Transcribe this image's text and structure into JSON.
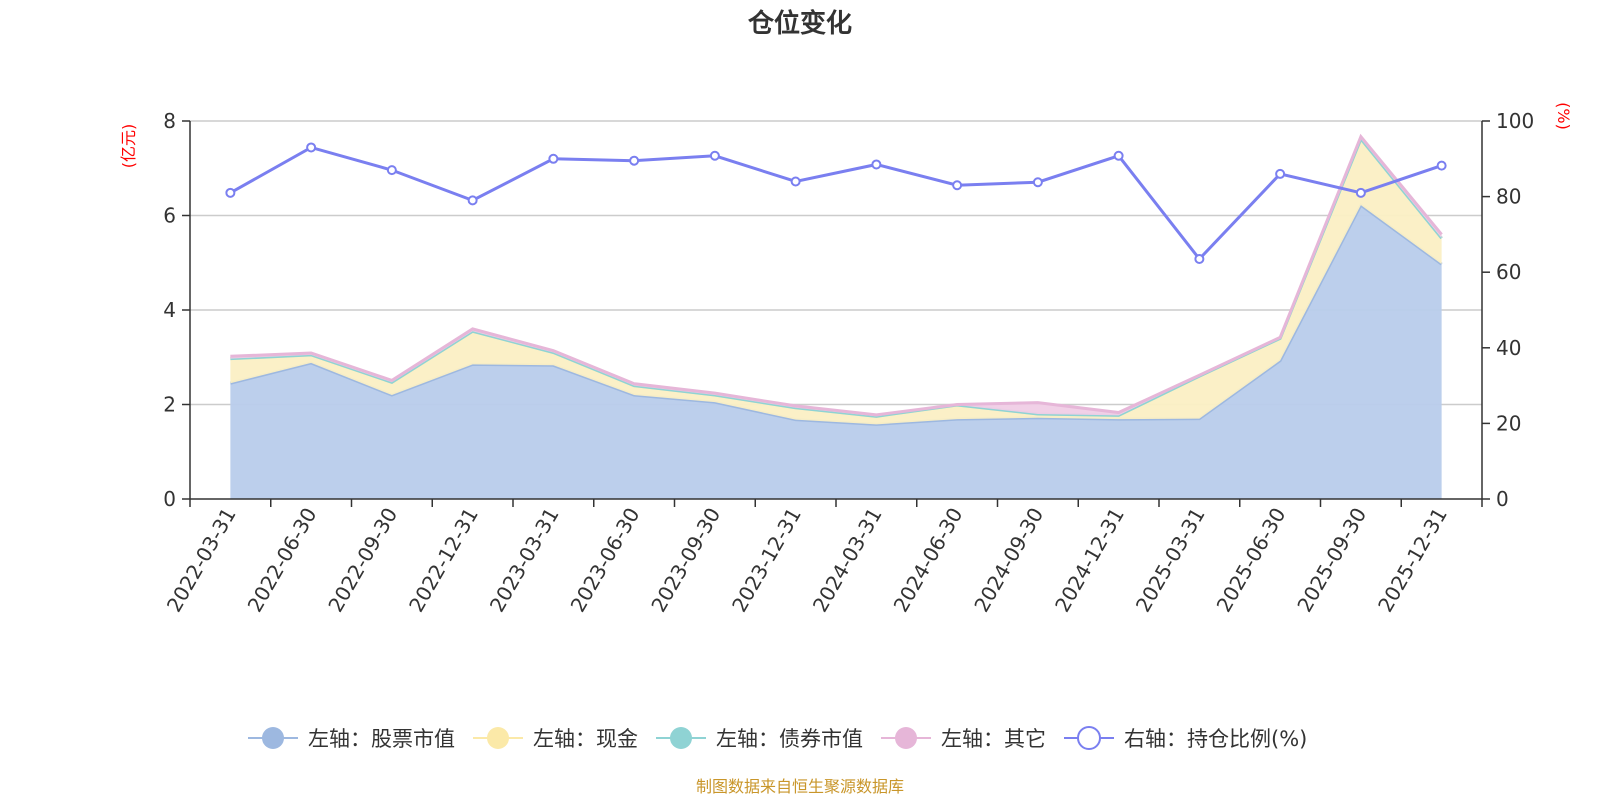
{
  "chart_data": {
    "type": "area",
    "title": "仓位变化",
    "y_left_unit": "(亿元)",
    "y_right_unit": "(%)",
    "ylim_left": [
      0,
      8
    ],
    "ylim_right": [
      0,
      100
    ],
    "yticks_left": [
      "0",
      "2",
      "4",
      "6",
      "8"
    ],
    "yticks_right": [
      "0",
      "20",
      "40",
      "60",
      "80",
      "100"
    ],
    "categories": [
      "2022-03-31",
      "2022-06-30",
      "2022-09-30",
      "2022-12-31",
      "2023-03-31",
      "2023-06-30",
      "2023-09-30",
      "2023-12-31",
      "2024-03-31",
      "2024-06-30",
      "2024-09-30",
      "2024-12-31",
      "2025-03-31",
      "2025-06-30",
      "2025-09-30",
      "2025-12-31"
    ],
    "series": [
      {
        "name": "左轴：股票市值",
        "axis": "left",
        "color": "#9db8e0",
        "fill": "#b8cceb",
        "values": [
          2.45,
          2.88,
          2.2,
          2.85,
          2.83,
          2.2,
          2.05,
          1.68,
          1.58,
          1.69,
          1.72,
          1.69,
          1.7,
          2.93,
          6.22,
          4.97
        ]
      },
      {
        "name": "左轴：现金",
        "axis": "left",
        "color": "#fbe9a8",
        "fill": "#fbefc4",
        "values": [
          0.52,
          0.17,
          0.27,
          0.7,
          0.27,
          0.2,
          0.15,
          0.25,
          0.17,
          0.3,
          0.08,
          0.08,
          0.9,
          0.47,
          1.4,
          0.55
        ]
      },
      {
        "name": "左轴：债券市值",
        "axis": "left",
        "color": "#8fd3d4",
        "fill": "#b7e4e4",
        "values": [
          0,
          0,
          0,
          0,
          0,
          0,
          0,
          0,
          0,
          0,
          0,
          0,
          0,
          0,
          0,
          0
        ]
      },
      {
        "name": "左轴：其它",
        "axis": "left",
        "color": "#e6b6d8",
        "fill": "#f0cde6",
        "values": [
          0.05,
          0.04,
          0.04,
          0.05,
          0.04,
          0.04,
          0.04,
          0.04,
          0.03,
          0.01,
          0.24,
          0.06,
          0.02,
          0.02,
          0.05,
          0.08
        ]
      },
      {
        "name": "右轴：持仓比例(%)",
        "axis": "right",
        "color": "#7a7ff0",
        "values": [
          81.0,
          93.0,
          87.0,
          79.0,
          90.0,
          89.5,
          90.8,
          84.0,
          88.5,
          83.0,
          83.8,
          90.8,
          63.5,
          86.0,
          81.0,
          88.2
        ]
      }
    ],
    "legend_position": "bottom",
    "grid": true,
    "source_text": "制图数据来自恒生聚源数据库"
  }
}
